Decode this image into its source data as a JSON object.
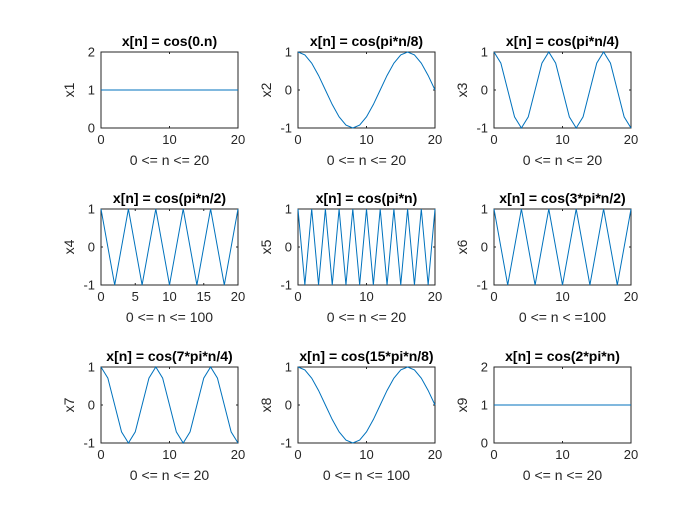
{
  "figure": {
    "background": "#ffffff"
  },
  "chart_data": [
    {
      "type": "line",
      "title": "x[n] = cos(0.n)",
      "xlabel": "0 <= n <= 20",
      "ylabel": "x1",
      "xlim": [
        0,
        20
      ],
      "ylim": [
        0,
        2
      ],
      "xticks": [
        "0",
        "10",
        "20"
      ],
      "yticks": [
        "0",
        "1",
        "2"
      ],
      "color": "#0072BD",
      "series": [
        {
          "x": [
            0,
            20
          ],
          "y": [
            1,
            1
          ]
        }
      ]
    },
    {
      "type": "line",
      "title": "x[n] = cos(pi*n/8)",
      "xlabel": "0 <= n <= 20",
      "ylabel": "x2",
      "xlim": [
        0,
        20
      ],
      "ylim": [
        -1,
        1
      ],
      "xticks": [
        "0",
        "10",
        "20"
      ],
      "yticks": [
        "-1",
        "0",
        "1"
      ],
      "color": "#0072BD",
      "series": [
        {
          "x": [
            0,
            1,
            2,
            3,
            4,
            5,
            6,
            7,
            8,
            9,
            10,
            11,
            12,
            13,
            14,
            15,
            16,
            17,
            18,
            19,
            20
          ],
          "y": [
            1,
            0.924,
            0.707,
            0.383,
            0,
            -0.383,
            -0.707,
            -0.924,
            -1,
            -0.924,
            -0.707,
            -0.383,
            0,
            0.383,
            0.707,
            0.924,
            1,
            0.924,
            0.707,
            0.383,
            0
          ]
        }
      ]
    },
    {
      "type": "line",
      "title": "x[n] = cos(pi*n/4)",
      "xlabel": "0 <= n <= 20",
      "ylabel": "x3",
      "xlim": [
        0,
        20
      ],
      "ylim": [
        -1,
        1
      ],
      "xticks": [
        "0",
        "10",
        "20"
      ],
      "yticks": [
        "-1",
        "0",
        "1"
      ],
      "color": "#0072BD",
      "series": [
        {
          "x": [
            0,
            1,
            2,
            3,
            4,
            5,
            6,
            7,
            8,
            9,
            10,
            11,
            12,
            13,
            14,
            15,
            16,
            17,
            18,
            19,
            20
          ],
          "y": [
            1,
            0.707,
            0,
            -0.707,
            -1,
            -0.707,
            0,
            0.707,
            1,
            0.707,
            0,
            -0.707,
            -1,
            -0.707,
            0,
            0.707,
            1,
            0.707,
            0,
            -0.707,
            -1
          ]
        }
      ]
    },
    {
      "type": "line",
      "title": "x[n] = cos(pi*n/2)",
      "xlabel": "0 <= n <= 100",
      "ylabel": "x4",
      "xlim": [
        0,
        20
      ],
      "ylim": [
        -1,
        1
      ],
      "xticks": [
        "0",
        "5",
        "10",
        "15",
        "20"
      ],
      "yticks": [
        "-1",
        "0",
        "1"
      ],
      "color": "#0072BD",
      "series": [
        {
          "x": [
            0,
            2,
            4,
            6,
            8,
            10,
            12,
            14,
            16,
            18,
            20
          ],
          "y": [
            1,
            -1,
            1,
            -1,
            1,
            -1,
            1,
            -1,
            1,
            -1,
            1
          ]
        }
      ]
    },
    {
      "type": "line",
      "title": "x[n] = cos(pi*n)",
      "xlabel": "0 <= n <= 20",
      "ylabel": "x5",
      "xlim": [
        0,
        20
      ],
      "ylim": [
        -1,
        1
      ],
      "xticks": [
        "0",
        "10",
        "20"
      ],
      "yticks": [
        "-1",
        "0",
        "1"
      ],
      "color": "#0072BD",
      "series": [
        {
          "x": [
            0,
            1,
            2,
            3,
            4,
            5,
            6,
            7,
            8,
            9,
            10,
            11,
            12,
            13,
            14,
            15,
            16,
            17,
            18,
            19,
            20
          ],
          "y": [
            1,
            -1,
            1,
            -1,
            1,
            -1,
            1,
            -1,
            1,
            -1,
            1,
            -1,
            1,
            -1,
            1,
            -1,
            1,
            -1,
            1,
            -1,
            1
          ]
        }
      ]
    },
    {
      "type": "line",
      "title": "x[n] = cos(3*pi*n/2)",
      "xlabel": "0 <= n < =100",
      "ylabel": "x6",
      "xlim": [
        0,
        20
      ],
      "ylim": [
        -1,
        1
      ],
      "xticks": [
        "0",
        "10",
        "20"
      ],
      "yticks": [
        "-1",
        "0",
        "1"
      ],
      "color": "#0072BD",
      "series": [
        {
          "x": [
            0,
            2,
            4,
            6,
            8,
            10,
            12,
            14,
            16,
            18,
            20
          ],
          "y": [
            1,
            -1,
            1,
            -1,
            1,
            -1,
            1,
            -1,
            1,
            -1,
            1
          ]
        }
      ]
    },
    {
      "type": "line",
      "title": "x[n] = cos(7*pi*n/4)",
      "xlabel": "0 <= n <= 20",
      "ylabel": "x7",
      "xlim": [
        0,
        20
      ],
      "ylim": [
        -1,
        1
      ],
      "xticks": [
        "0",
        "10",
        "20"
      ],
      "yticks": [
        "-1",
        "0",
        "1"
      ],
      "color": "#0072BD",
      "series": [
        {
          "x": [
            0,
            1,
            2,
            3,
            4,
            5,
            6,
            7,
            8,
            9,
            10,
            11,
            12,
            13,
            14,
            15,
            16,
            17,
            18,
            19,
            20
          ],
          "y": [
            1,
            0.707,
            0,
            -0.707,
            -1,
            -0.707,
            0,
            0.707,
            1,
            0.707,
            0,
            -0.707,
            -1,
            -0.707,
            0,
            0.707,
            1,
            0.707,
            0,
            -0.707,
            -1
          ]
        }
      ]
    },
    {
      "type": "line",
      "title": "x[n] = cos(15*pi*n/8)",
      "xlabel": "0 <= n <= 100",
      "ylabel": "x8",
      "xlim": [
        0,
        20
      ],
      "ylim": [
        -1,
        1
      ],
      "xticks": [
        "0",
        "10",
        "20"
      ],
      "yticks": [
        "-1",
        "0",
        "1"
      ],
      "color": "#0072BD",
      "series": [
        {
          "x": [
            0,
            1,
            2,
            3,
            4,
            5,
            6,
            7,
            8,
            9,
            10,
            11,
            12,
            13,
            14,
            15,
            16,
            17,
            18,
            19,
            20
          ],
          "y": [
            1,
            0.924,
            0.707,
            0.383,
            0,
            -0.383,
            -0.707,
            -0.924,
            -1,
            -0.924,
            -0.707,
            -0.383,
            0,
            0.383,
            0.707,
            0.924,
            1,
            0.924,
            0.707,
            0.383,
            0
          ]
        }
      ]
    },
    {
      "type": "line",
      "title": "x[n] = cos(2*pi*n)",
      "xlabel": "0 <= n <= 20",
      "ylabel": "x9",
      "xlim": [
        0,
        20
      ],
      "ylim": [
        0,
        2
      ],
      "xticks": [
        "0",
        "10",
        "20"
      ],
      "yticks": [
        "0",
        "1",
        "2"
      ],
      "color": "#0072BD",
      "series": [
        {
          "x": [
            0,
            20
          ],
          "y": [
            1,
            1
          ]
        }
      ]
    }
  ]
}
